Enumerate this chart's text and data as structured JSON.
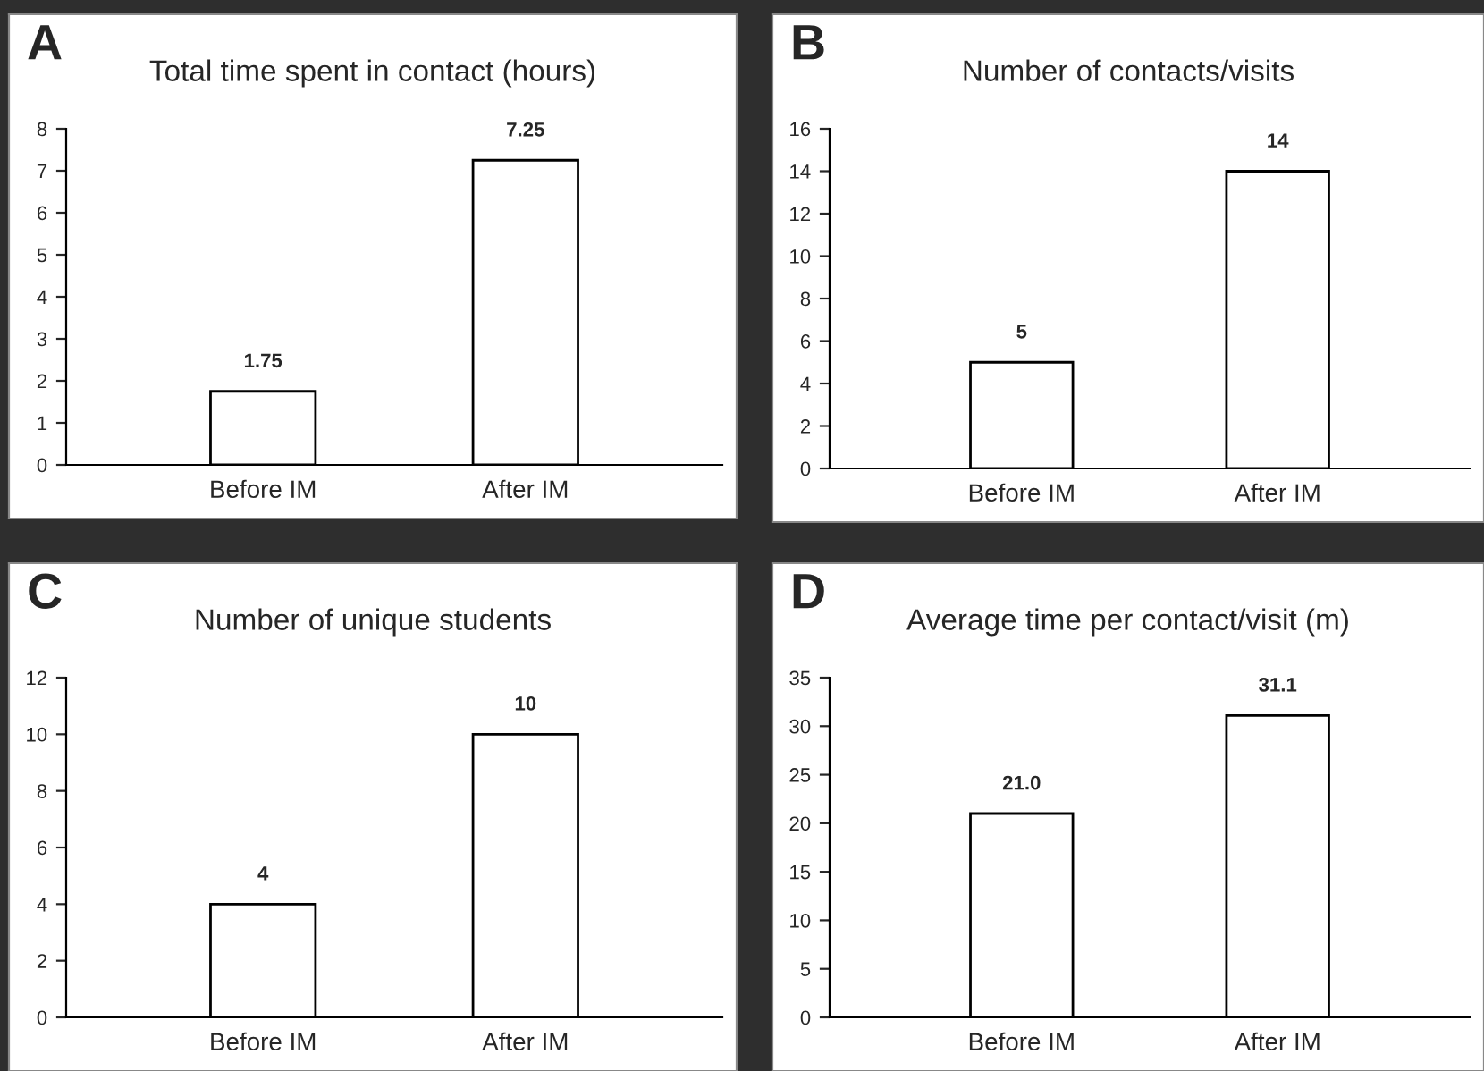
{
  "chart_data": [
    {
      "type": "bar",
      "title": "Total time spent in contact (hours)",
      "annotations": [
        "A"
      ],
      "categories": [
        "Before IM",
        "After IM"
      ],
      "series": [
        {
          "color": "#ffffff",
          "values": [
            1.75,
            7.25
          ]
        }
      ],
      "ylim": [
        0,
        8
      ],
      "yticks": [
        0,
        1,
        2,
        3,
        4,
        5,
        6,
        7,
        8
      ],
      "data_labels": true,
      "grid": false,
      "legend": false
    },
    {
      "type": "bar",
      "title": "Number of contacts/visits",
      "annotations": [
        "B"
      ],
      "categories": [
        "Before IM",
        "After IM"
      ],
      "series": [
        {
          "color": "#ffffff",
          "values": [
            5,
            14
          ]
        }
      ],
      "ylim": [
        0,
        16
      ],
      "yticks": [
        0,
        2,
        4,
        6,
        8,
        10,
        12,
        14,
        16
      ],
      "data_labels": true,
      "grid": false,
      "legend": false
    },
    {
      "type": "bar",
      "title": "Number of unique students",
      "annotations": [
        "C"
      ],
      "categories": [
        "Before IM",
        "After IM"
      ],
      "series": [
        {
          "color": "#ffffff",
          "values": [
            4,
            10
          ]
        }
      ],
      "ylim": [
        0,
        12
      ],
      "yticks": [
        0,
        2,
        4,
        6,
        8,
        10,
        12
      ],
      "data_labels": true,
      "grid": false,
      "legend": false
    },
    {
      "type": "bar",
      "title": "Average time per contact/visit (m)",
      "annotations": [
        "D"
      ],
      "categories": [
        "Before IM",
        "After IM"
      ],
      "series": [
        {
          "color": "#ffffff",
          "values": [
            21.0,
            31.1
          ],
          "value_labels": [
            "21.0",
            "31.1"
          ]
        }
      ],
      "ylim": [
        0,
        35
      ],
      "yticks": [
        0,
        5,
        10,
        15,
        20,
        25,
        30,
        35
      ],
      "grid": false,
      "legend": false
    }
  ]
}
